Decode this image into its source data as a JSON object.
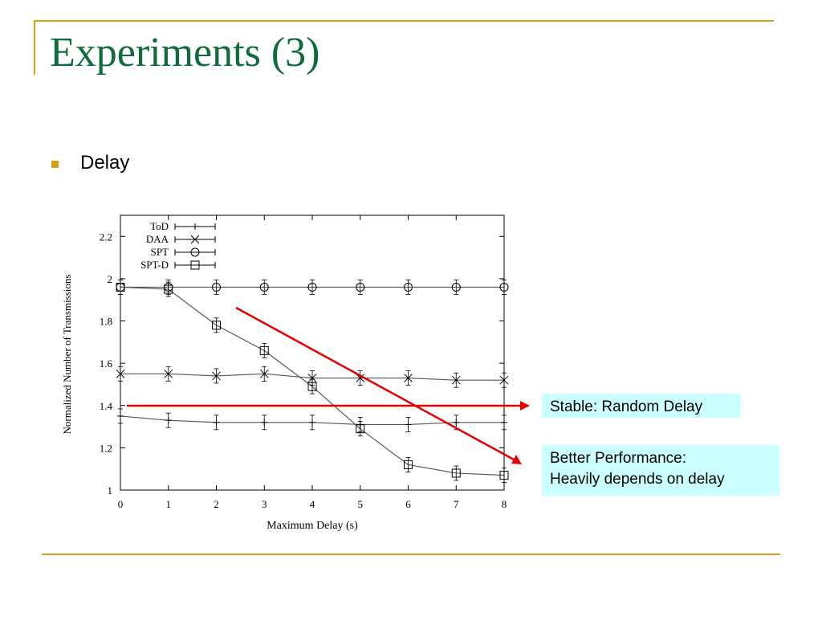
{
  "slide": {
    "title": "Experiments (3)",
    "bullet": "Delay"
  },
  "colors": {
    "accent_line": "#d4a017",
    "title": "#0f6b3a",
    "arrow": "#e60000",
    "callout_bg": "#ccffff"
  },
  "annotations": {
    "stable": "Stable: Random Delay",
    "better_line1": "Better Performance:",
    "better_line2": "Heavily depends on delay"
  },
  "chart_data": {
    "type": "line",
    "title": "",
    "xlabel": "Maximum Delay (s)",
    "ylabel": "Normalized Number of Transmissions",
    "xlim": [
      0,
      8
    ],
    "ylim": [
      1,
      2.3
    ],
    "x": [
      0,
      1,
      2,
      3,
      4,
      5,
      6,
      7,
      8
    ],
    "xticks": [
      "0",
      "1",
      "2",
      "3",
      "4",
      "5",
      "6",
      "7",
      "8"
    ],
    "yticks": [
      1,
      1.2,
      1.4,
      1.6,
      1.8,
      2,
      2.2
    ],
    "ytick_labels": [
      "1",
      "1.2",
      "1.4",
      "1.6",
      "1.8",
      "2",
      "2.2"
    ],
    "grid": false,
    "legend_position": "top-left",
    "series": [
      {
        "name": "ToD",
        "marker": "plus",
        "values": [
          1.35,
          1.33,
          1.32,
          1.32,
          1.32,
          1.31,
          1.31,
          1.32,
          1.32
        ]
      },
      {
        "name": "DAA",
        "marker": "cross",
        "values": [
          1.55,
          1.55,
          1.54,
          1.55,
          1.53,
          1.53,
          1.53,
          1.52,
          1.52
        ]
      },
      {
        "name": "SPT",
        "marker": "circle",
        "values": [
          1.96,
          1.96,
          1.96,
          1.96,
          1.96,
          1.96,
          1.96,
          1.96,
          1.96
        ]
      },
      {
        "name": "SPT-D",
        "marker": "square",
        "values": [
          1.96,
          1.95,
          1.78,
          1.66,
          1.49,
          1.29,
          1.12,
          1.08,
          1.07
        ]
      }
    ]
  }
}
